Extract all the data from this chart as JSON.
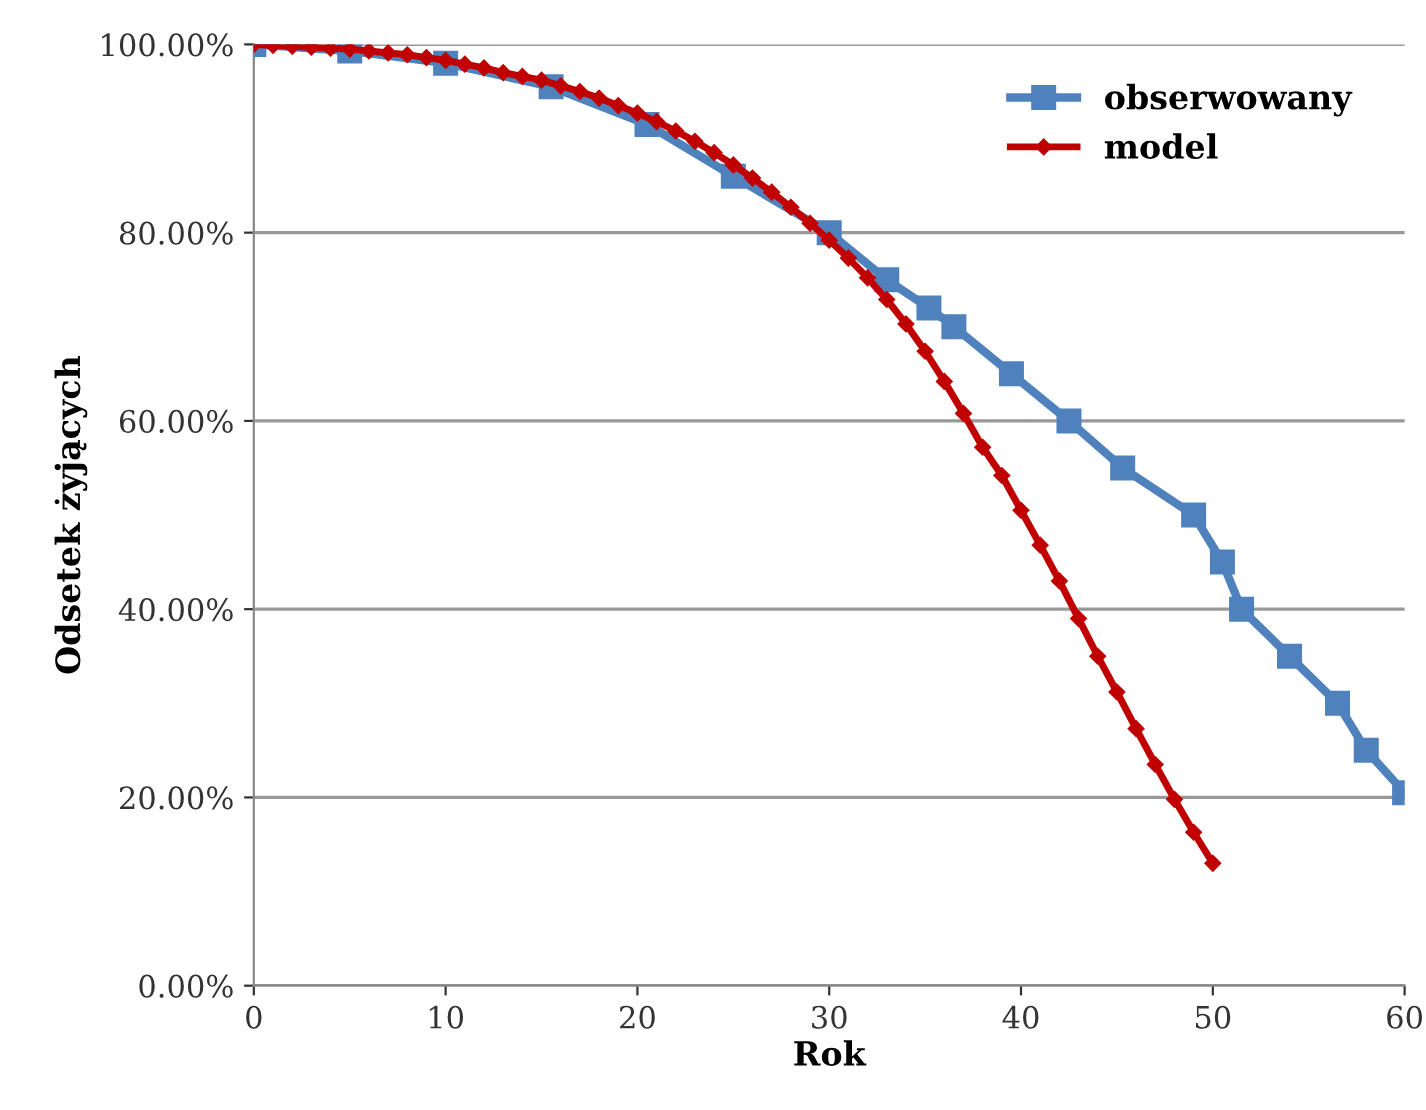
{
  "chart_data": {
    "type": "line",
    "xlabel": "Rok",
    "ylabel": "Odsetek żyjących",
    "xlim": [
      0,
      60
    ],
    "xticks": [
      0,
      10,
      20,
      30,
      40,
      50,
      60
    ],
    "ylim": [
      0,
      100
    ],
    "yticks": [
      {
        "value": 0,
        "label": "0.00%"
      },
      {
        "value": 20,
        "label": "20.00%"
      },
      {
        "value": 40,
        "label": "40.00%"
      },
      {
        "value": 60,
        "label": "60.00%"
      },
      {
        "value": 80,
        "label": "80.00%"
      },
      {
        "value": 100,
        "label": "100.00%"
      }
    ],
    "grid": "y",
    "legend": "top right",
    "line_style": "solid",
    "series": [
      {
        "name": "obserwowany",
        "color": "#4f81bd",
        "marker": "square",
        "x": [
          0,
          5,
          10,
          15.5,
          20.5,
          25,
          30,
          33,
          35.2,
          36.5,
          39.5,
          42.5,
          45.3,
          49,
          50.5,
          51.5,
          54,
          56.5,
          58,
          60
        ],
        "values": [
          100,
          99.3,
          98,
          95.5,
          91.5,
          86,
          80,
          75,
          72,
          70,
          65,
          60,
          55,
          50,
          45,
          40,
          35,
          30,
          25,
          20.5
        ]
      },
      {
        "name": "model",
        "color": "#c00000",
        "marker": "diamond",
        "x": [
          0,
          1,
          2,
          3,
          4,
          5,
          6,
          7,
          8,
          9,
          10,
          11,
          12,
          13,
          14,
          15,
          16,
          17,
          18,
          19,
          20,
          21,
          22,
          23,
          24,
          25,
          26,
          27,
          28,
          29,
          30,
          31,
          32,
          33,
          34,
          35,
          36,
          37,
          38,
          39,
          40,
          41,
          42,
          43,
          44,
          45,
          46,
          47,
          48,
          49,
          50
        ],
        "values": [
          100,
          99.9,
          99.8,
          99.7,
          99.6,
          99.5,
          99.3,
          99.1,
          98.9,
          98.6,
          98.3,
          97.9,
          97.5,
          97.0,
          96.6,
          96.2,
          95.6,
          95.0,
          94.3,
          93.5,
          92.7,
          91.8,
          90.8,
          89.7,
          88.5,
          87.2,
          85.8,
          84.3,
          82.7,
          81.0,
          79.2,
          77.3,
          75.2,
          72.9,
          70.3,
          67.4,
          64.2,
          60.8,
          57.2,
          54.2,
          50.5,
          46.8,
          43,
          39,
          35,
          31.2,
          27.3,
          23.5,
          19.8,
          16.3,
          13
        ]
      }
    ]
  }
}
